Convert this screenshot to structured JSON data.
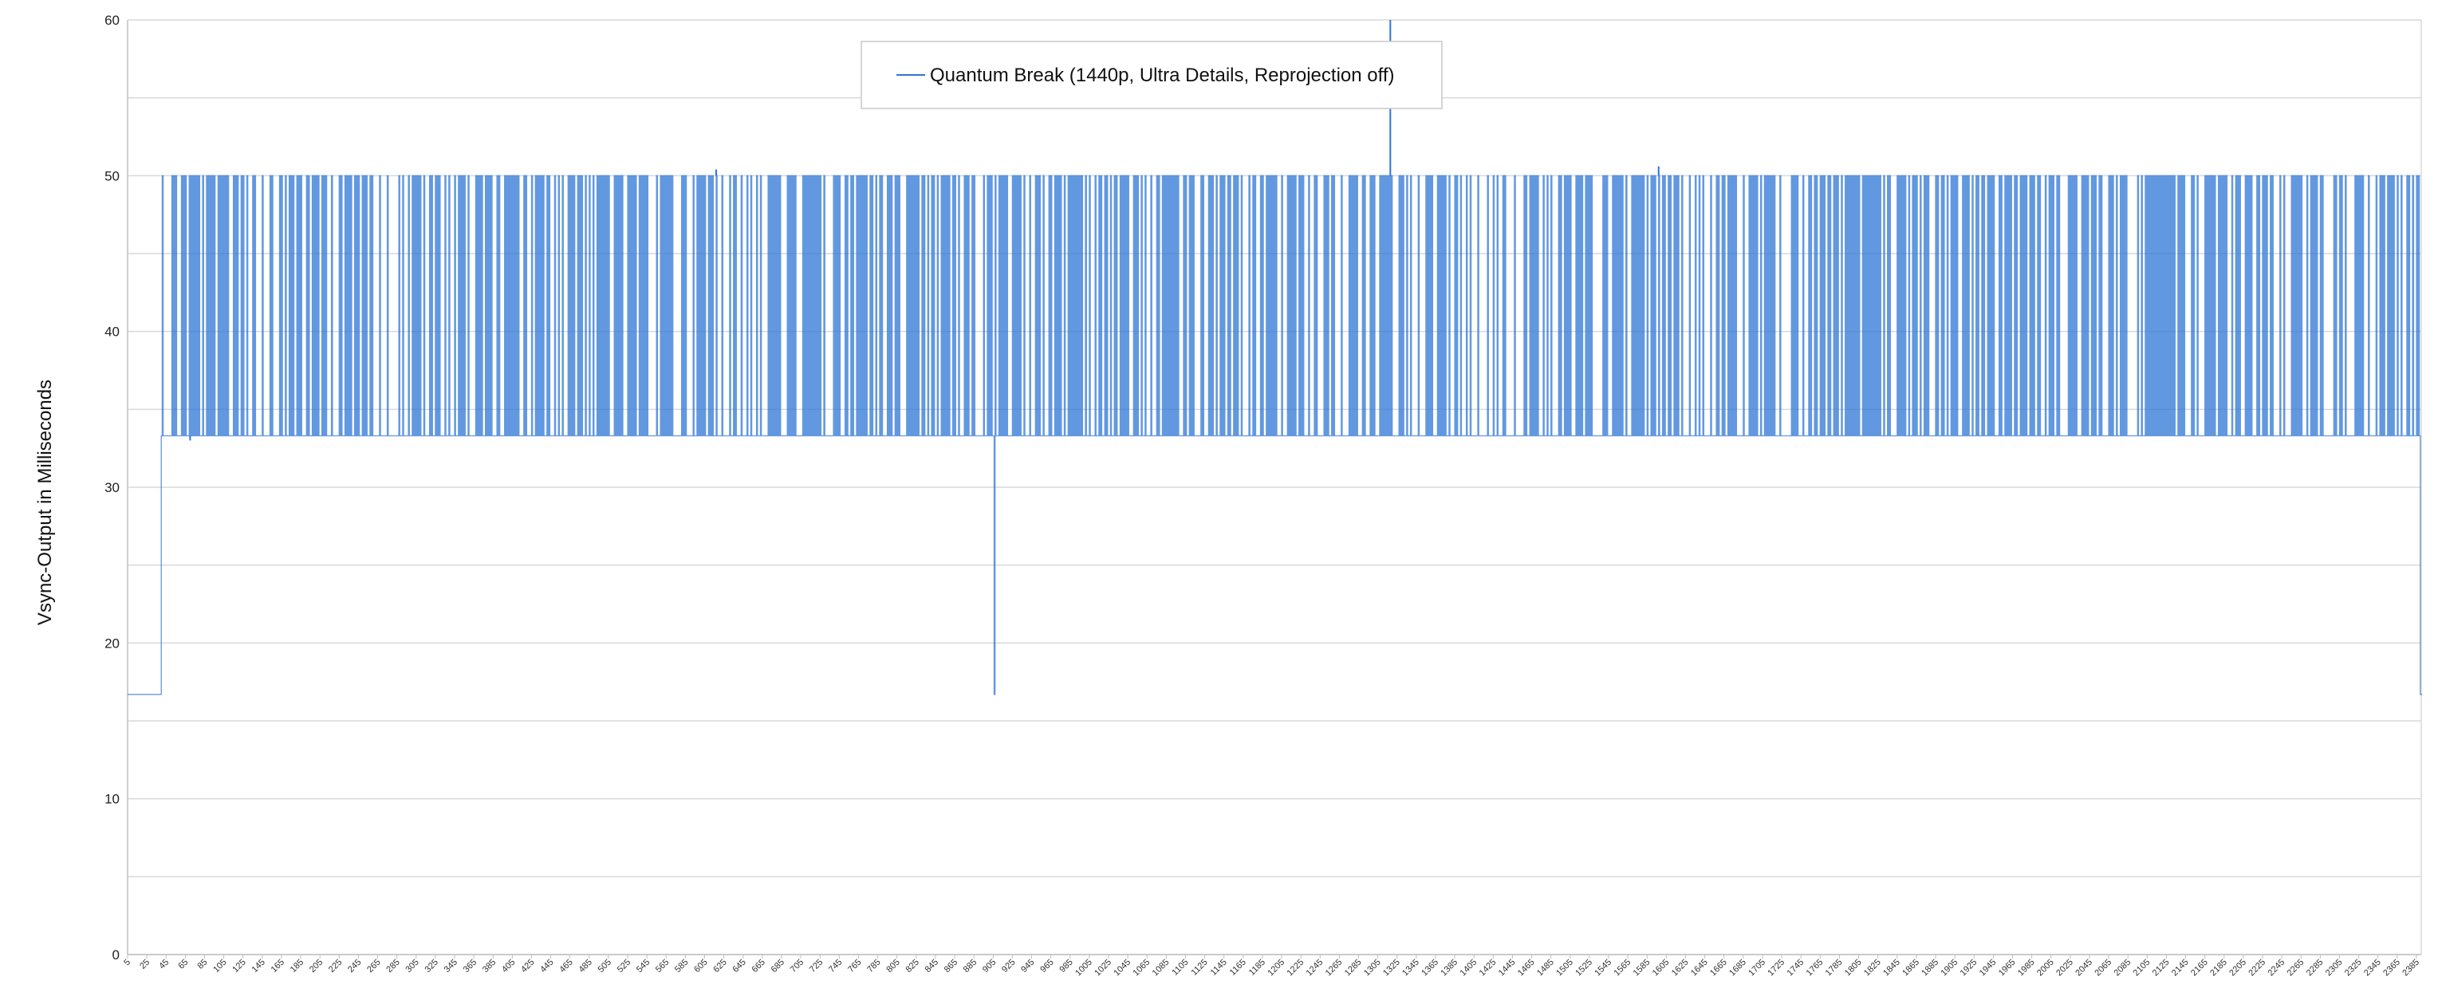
{
  "chart_data": {
    "type": "line",
    "title": "",
    "xlabel": "",
    "ylabel": "Vsync-Output in Milliseconds",
    "xlim": [
      5,
      2390
    ],
    "ylim": [
      0,
      60
    ],
    "y_ticks": [
      0,
      10,
      20,
      30,
      40,
      50,
      60
    ],
    "x_tick_start": 5,
    "x_tick_step": 20,
    "grid": "horizontal",
    "legend_position": "top-center",
    "colors": {
      "series": "#2E75D6",
      "grid": "#D9D9D9",
      "axis": "#BFBFBF"
    },
    "series": [
      {
        "name": "Quantum Break (1440p, Ultra Details, Reprojection off)",
        "description_levels": {
          "low": 16.7,
          "mid": 33.3,
          "high": 50.0
        },
        "segments": [
          {
            "x_start": 5,
            "x_end": 39,
            "value": 16.7
          },
          {
            "x_start": 40,
            "x_end": 905,
            "alternating": [
              33.3,
              50.0
            ]
          },
          {
            "x_start": 906,
            "x_end": 906,
            "value": 16.7
          },
          {
            "x_start": 907,
            "x_end": 2388,
            "alternating": [
              33.3,
              50.0
            ]
          },
          {
            "x_start": 2389,
            "x_end": 2390,
            "value": 16.7
          }
        ],
        "spikes": [
          {
            "x": 70,
            "value": 33.0
          },
          {
            "x": 617,
            "value": 50.4
          },
          {
            "x": 1318,
            "value": 60.0
          },
          {
            "x": 1597,
            "value": 50.6
          }
        ]
      }
    ]
  }
}
